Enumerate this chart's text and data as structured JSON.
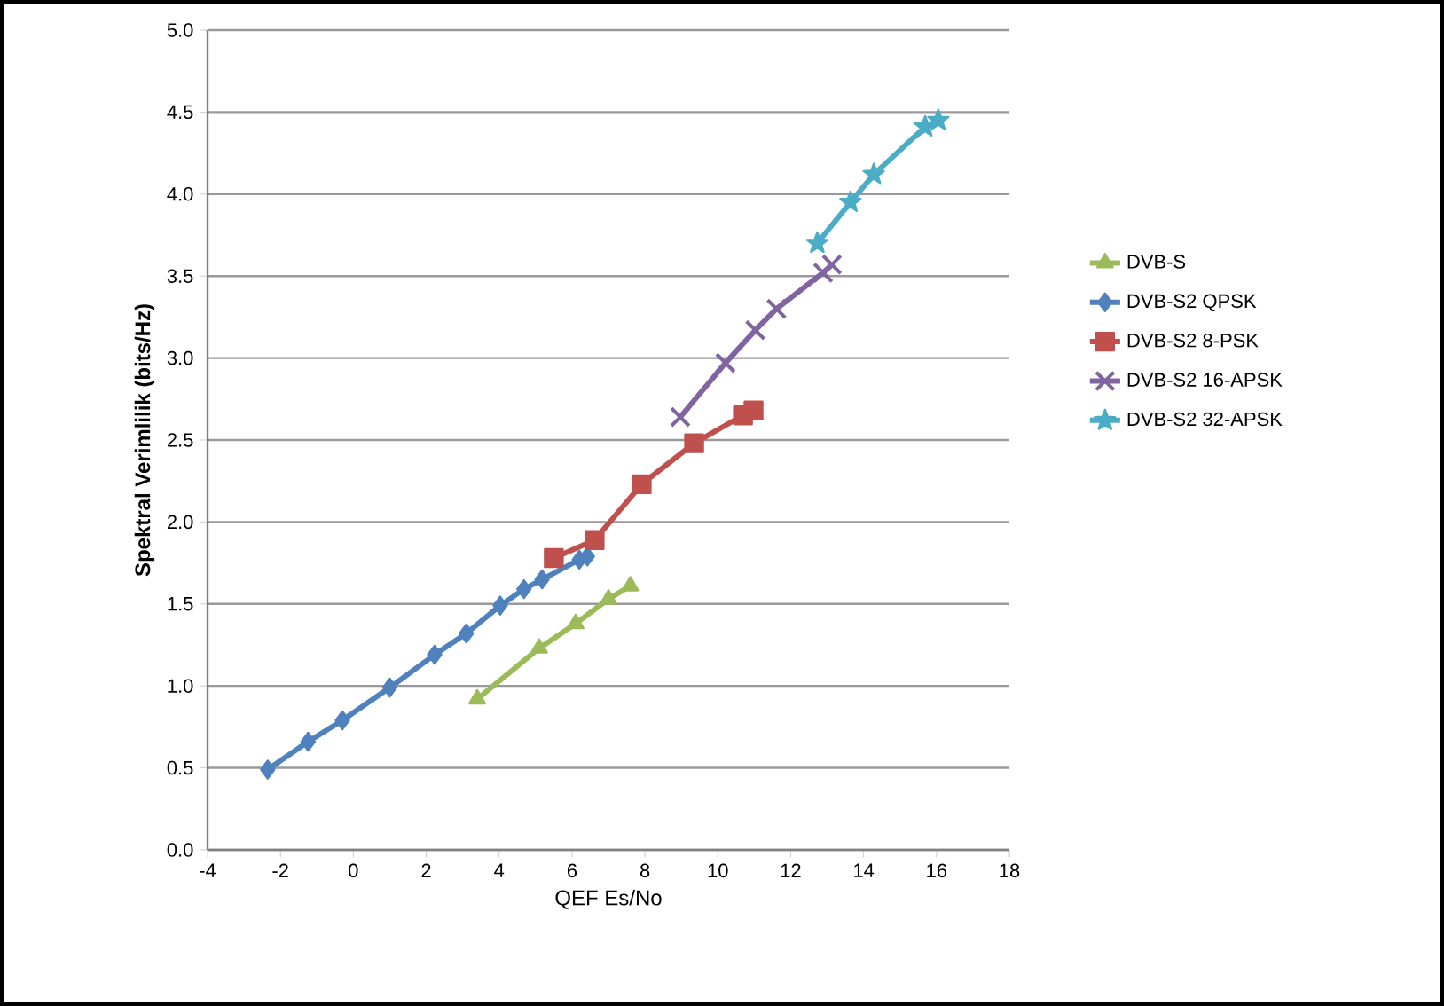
{
  "chart_data": {
    "type": "line",
    "xlabel": "QEF Es/No",
    "ylabel": "Spektral Verimlilik (bits/Hz)",
    "xlim": [
      -4,
      18
    ],
    "xticks": [
      -4,
      -2,
      0,
      2,
      4,
      6,
      8,
      10,
      12,
      14,
      16,
      18
    ],
    "ylim": [
      0,
      5
    ],
    "yticks": [
      {
        "value": 0,
        "label": "0.0"
      },
      {
        "value": 0.5,
        "label": "0.5"
      },
      {
        "value": 1,
        "label": "1.0"
      },
      {
        "value": 1.5,
        "label": "1.5"
      },
      {
        "value": 2,
        "label": "2.0"
      },
      {
        "value": 2.5,
        "label": "2.5"
      },
      {
        "value": 3,
        "label": "3.0"
      },
      {
        "value": 3.5,
        "label": "3.5"
      },
      {
        "value": 4,
        "label": "4.0"
      },
      {
        "value": 4.5,
        "label": "4.5"
      },
      {
        "value": 5,
        "label": "5.0"
      }
    ],
    "grid": "y",
    "legend": "right",
    "line_style": "solid",
    "series": [
      {
        "name": "DVB-S",
        "color": "#9bbb59",
        "marker": "triangle",
        "x": [
          3.4,
          5.1,
          6.1,
          7.0,
          7.6
        ],
        "values": [
          0.92,
          1.23,
          1.38,
          1.53,
          1.61
        ]
      },
      {
        "name": "DVB-S2 QPSK",
        "color": "#4f81bd",
        "marker": "diamond",
        "x": [
          -2.35,
          -1.24,
          -0.3,
          1.0,
          2.23,
          3.1,
          4.03,
          4.68,
          5.18,
          6.2,
          6.42
        ],
        "values": [
          0.49,
          0.66,
          0.79,
          0.99,
          1.19,
          1.32,
          1.49,
          1.59,
          1.65,
          1.77,
          1.79
        ]
      },
      {
        "name": "DVB-S2 8-PSK",
        "color": "#c0504d",
        "marker": "square",
        "x": [
          5.5,
          6.62,
          7.91,
          9.35,
          10.69,
          10.98
        ],
        "values": [
          1.78,
          1.89,
          2.23,
          2.48,
          2.65,
          2.68
        ]
      },
      {
        "name": "DVB-S2 16-APSK",
        "color": "#8064a2",
        "marker": "cross",
        "x": [
          8.97,
          10.21,
          11.03,
          11.61,
          12.89,
          13.13
        ],
        "values": [
          2.64,
          2.97,
          3.17,
          3.3,
          3.52,
          3.57
        ]
      },
      {
        "name": "DVB-S2 32-APSK",
        "color": "#4bacc6",
        "marker": "star",
        "x": [
          12.73,
          13.64,
          14.28,
          15.69,
          16.05
        ],
        "values": [
          3.7,
          3.95,
          4.12,
          4.41,
          4.45
        ]
      }
    ]
  }
}
